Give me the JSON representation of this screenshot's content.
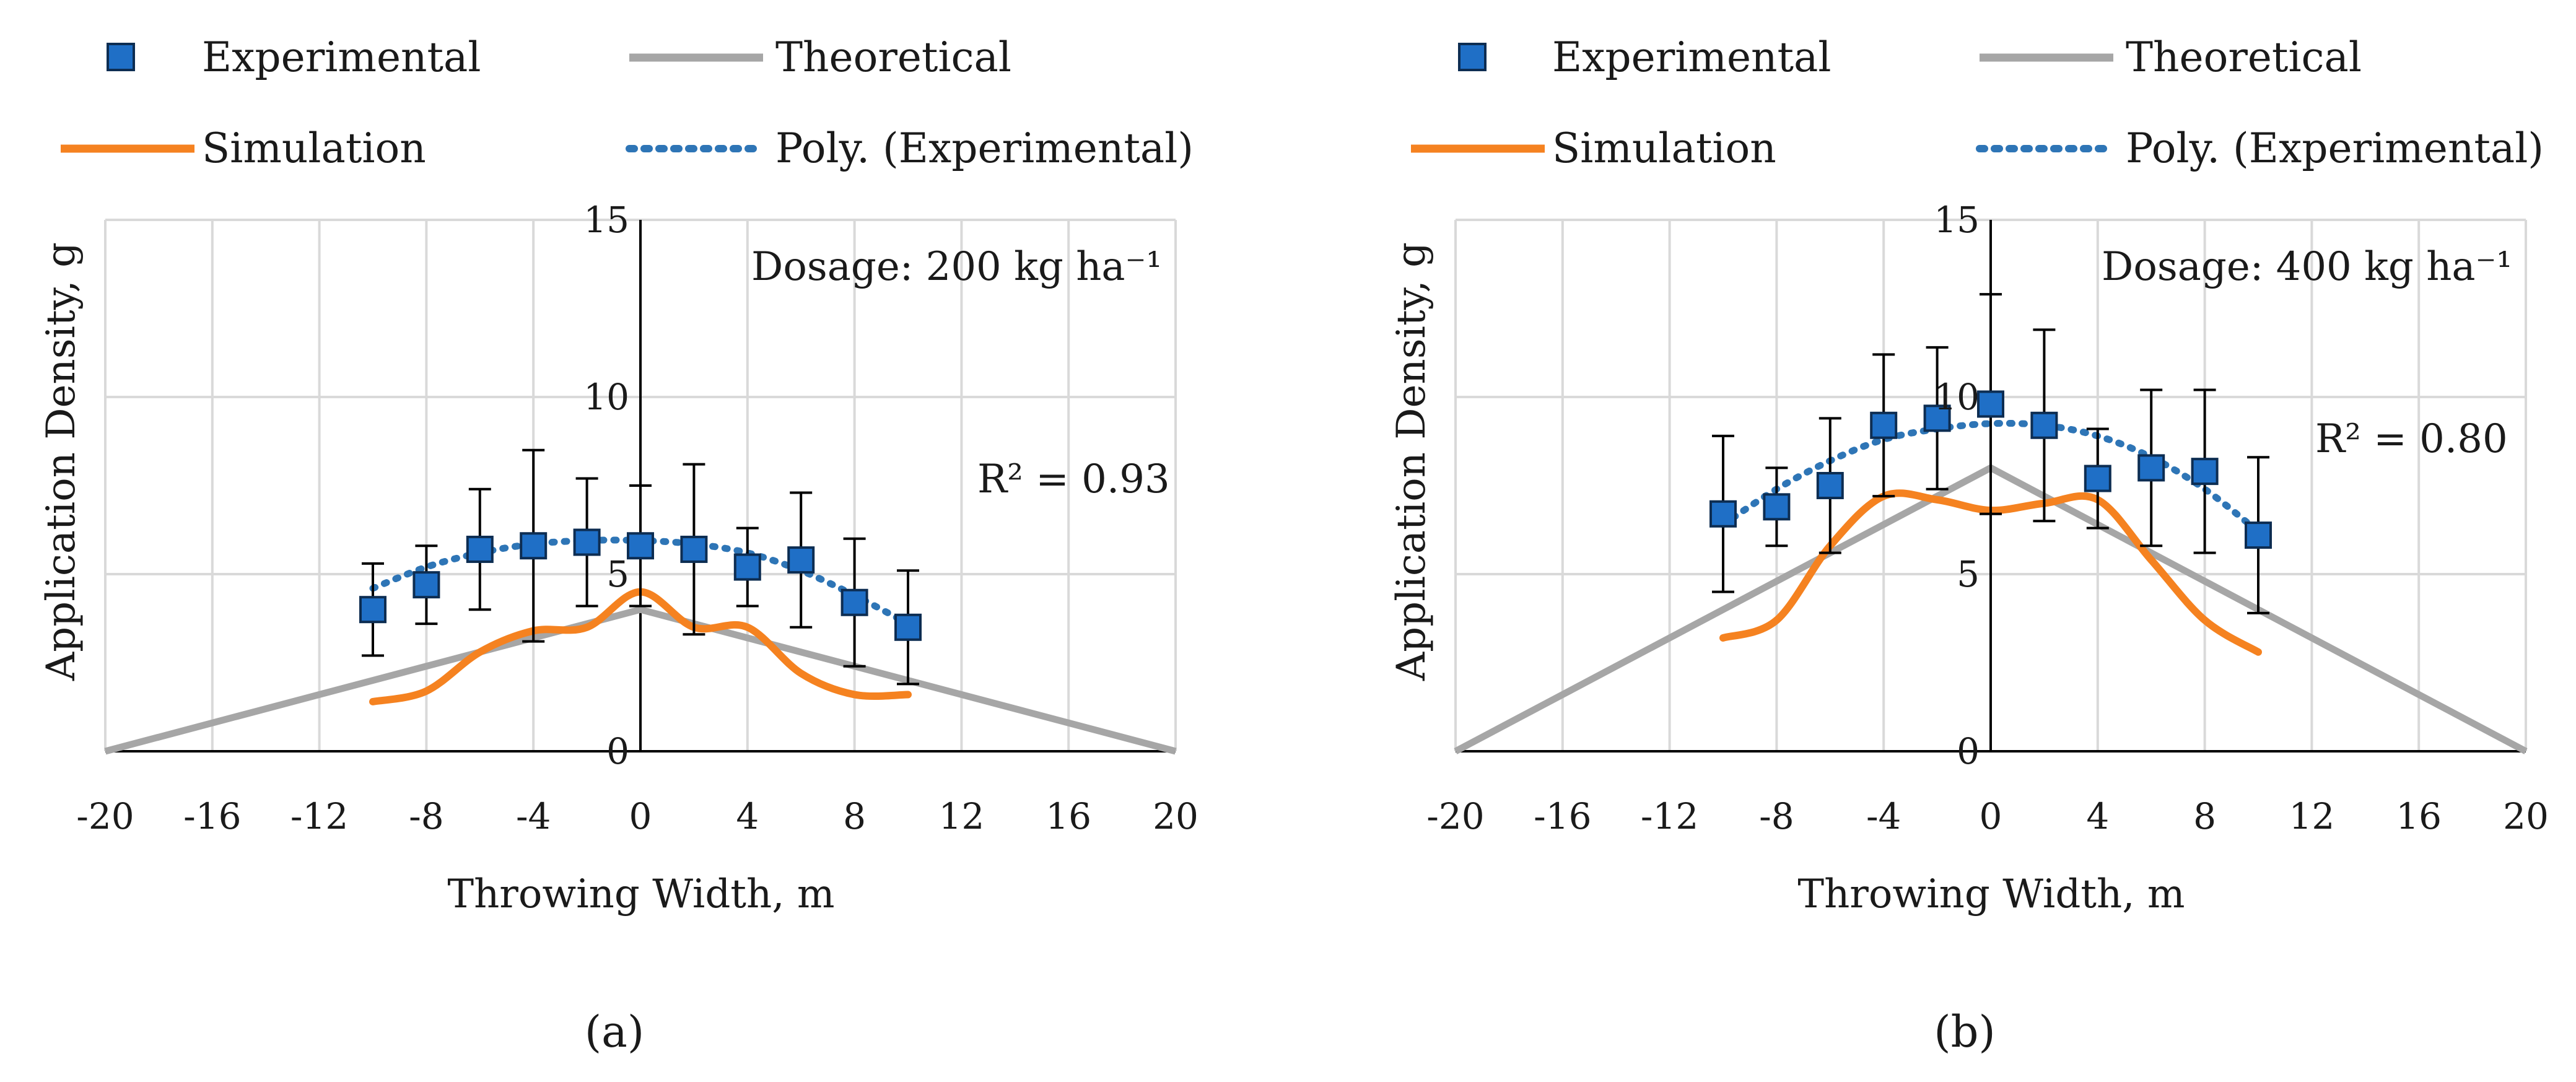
{
  "legend": {
    "experimental": "Experimental",
    "theoretical": "Theoretical",
    "simulation": "Simulation",
    "poly": "Poly. (Experimental)"
  },
  "colors": {
    "experimental": "#1f6fc6",
    "experimental_edge": "#0d2d52",
    "theoretical": "#a6a6a6",
    "simulation": "#f58220",
    "poly": "#2e75b6",
    "grid": "#d9d9d9"
  },
  "chart_data": [
    {
      "type": "line",
      "panel_label": "(a)",
      "xlabel": "Throwing Width, m",
      "ylabel": "Application Density, g",
      "xlim": [
        -20,
        20
      ],
      "ylim": [
        0,
        15
      ],
      "xticks": [
        -20,
        -16,
        -12,
        -8,
        -4,
        0,
        4,
        8,
        12,
        16,
        20
      ],
      "yticks": [
        0,
        5,
        10,
        15
      ],
      "dosage_label": "Dosage: 200 kg ha⁻¹",
      "r2_label": "R² = 0.93",
      "series": [
        {
          "name": "Experimental",
          "x": [
            -10,
            -8,
            -6,
            -4,
            -2,
            0,
            2,
            4,
            6,
            8,
            10
          ],
          "y": [
            4.0,
            4.7,
            5.7,
            5.8,
            5.9,
            5.8,
            5.7,
            5.2,
            5.4,
            4.2,
            3.5
          ],
          "yerr": [
            1.3,
            1.1,
            1.7,
            2.7,
            1.8,
            1.7,
            2.4,
            1.1,
            1.9,
            1.8,
            1.6
          ]
        },
        {
          "name": "Theoretical",
          "x": [
            -20,
            0,
            20
          ],
          "y": [
            0,
            4.0,
            0
          ]
        },
        {
          "name": "Simulation",
          "x": [
            -10,
            -8,
            -6,
            -4,
            -2,
            0,
            2,
            4,
            6,
            8,
            10
          ],
          "y": [
            1.4,
            1.7,
            2.8,
            3.4,
            3.5,
            4.5,
            3.5,
            3.5,
            2.2,
            1.6,
            1.6
          ]
        },
        {
          "name": "Poly. (Experimental)",
          "x": [
            -10,
            -8,
            -6,
            -4,
            -2,
            0,
            2,
            4,
            6,
            8,
            10
          ],
          "y": [
            4.6,
            5.2,
            5.6,
            5.85,
            5.95,
            5.95,
            5.85,
            5.6,
            5.1,
            4.4,
            3.6
          ]
        }
      ]
    },
    {
      "type": "line",
      "panel_label": "(b)",
      "xlabel": "Throwing Width, m",
      "ylabel": "Application Density, g",
      "xlim": [
        -20,
        20
      ],
      "ylim": [
        0,
        15
      ],
      "xticks": [
        -20,
        -16,
        -12,
        -8,
        -4,
        0,
        4,
        8,
        12,
        16,
        20
      ],
      "yticks": [
        0,
        5,
        10,
        15
      ],
      "dosage_label": "Dosage: 400 kg ha⁻¹",
      "r2_label": "R² = 0.80",
      "series": [
        {
          "name": "Experimental",
          "x": [
            -10,
            -8,
            -6,
            -4,
            -2,
            0,
            2,
            4,
            6,
            8,
            10
          ],
          "y": [
            6.7,
            6.9,
            7.5,
            9.2,
            9.4,
            9.8,
            9.2,
            7.7,
            8.0,
            7.9,
            6.1
          ],
          "yerr": [
            2.2,
            1.1,
            1.9,
            2.0,
            2.0,
            3.1,
            2.7,
            1.4,
            2.2,
            2.3,
            2.2
          ]
        },
        {
          "name": "Theoretical",
          "x": [
            -20,
            0,
            20
          ],
          "y": [
            0,
            8.0,
            0
          ]
        },
        {
          "name": "Simulation",
          "x": [
            -10,
            -8,
            -6,
            -4,
            -2,
            0,
            2,
            4,
            6,
            8,
            10
          ],
          "y": [
            3.2,
            3.7,
            5.8,
            7.2,
            7.1,
            6.8,
            7.0,
            7.1,
            5.4,
            3.7,
            2.8
          ]
        },
        {
          "name": "Poly. (Experimental)",
          "x": [
            -10,
            -8,
            -6,
            -4,
            -2,
            0,
            2,
            4,
            6,
            8,
            10
          ],
          "y": [
            6.4,
            7.4,
            8.2,
            8.8,
            9.1,
            9.25,
            9.2,
            8.9,
            8.3,
            7.4,
            6.2
          ]
        }
      ]
    }
  ]
}
